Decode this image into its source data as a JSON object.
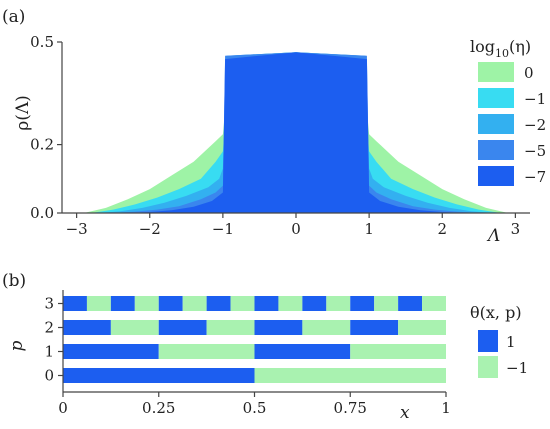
{
  "panel_a": {
    "label": "(a)",
    "ylabel": "ρ(Λ)",
    "xlabel": "Λ",
    "legend_title": "log10(η)",
    "legend_title_base": "log",
    "legend_title_sub": "10",
    "legend_title_arg": "(η)"
  },
  "panel_b": {
    "label": "(b)",
    "ylabel": "p",
    "xlabel": "x",
    "legend_title": "θ(x, p)"
  },
  "chart_data": [
    {
      "type": "area",
      "title": "",
      "xlabel": "Λ",
      "ylabel": "ρ(Λ)",
      "xlim": [
        -3.2,
        3.2
      ],
      "ylim": [
        0,
        0.5
      ],
      "xticks": [
        "−3",
        "−2",
        "−1",
        "0",
        "1",
        "2",
        "3"
      ],
      "yticks": [
        "0.0",
        "0.2",
        "0.5"
      ],
      "legend_title": "log10(η)",
      "legend_position": "right",
      "grid": false,
      "series": [
        {
          "name": "0",
          "color": "#9ef3a6",
          "x": [
            -2.9,
            -2.6,
            -2.3,
            -2.0,
            -1.7,
            -1.4,
            -1.1,
            -1.0,
            -0.9,
            0.0,
            0.9,
            1.0,
            1.1,
            1.4,
            1.7,
            2.0,
            2.3,
            2.6,
            2.9
          ],
          "values": [
            0.0,
            0.015,
            0.04,
            0.07,
            0.11,
            0.15,
            0.21,
            0.23,
            0.46,
            0.47,
            0.46,
            0.23,
            0.21,
            0.15,
            0.11,
            0.07,
            0.04,
            0.015,
            0.0
          ]
        },
        {
          "name": "−1",
          "color": "#38dcf2",
          "x": [
            -2.8,
            -2.5,
            -2.2,
            -1.9,
            -1.6,
            -1.3,
            -1.1,
            -1.0,
            -0.9,
            0.0,
            0.9,
            1.0,
            1.1,
            1.3,
            1.6,
            1.9,
            2.2,
            2.5,
            2.8
          ],
          "values": [
            0.0,
            0.01,
            0.025,
            0.045,
            0.07,
            0.1,
            0.15,
            0.18,
            0.46,
            0.47,
            0.46,
            0.18,
            0.15,
            0.1,
            0.07,
            0.045,
            0.025,
            0.01,
            0.0
          ]
        },
        {
          "name": "−2",
          "color": "#33b0f0",
          "x": [
            -2.7,
            -2.4,
            -2.1,
            -1.8,
            -1.5,
            -1.2,
            -1.05,
            -1.0,
            -0.95,
            0.0,
            0.95,
            1.0,
            1.05,
            1.2,
            1.5,
            1.8,
            2.1,
            2.4,
            2.7
          ],
          "values": [
            0.0,
            0.005,
            0.015,
            0.03,
            0.05,
            0.075,
            0.1,
            0.13,
            0.46,
            0.47,
            0.46,
            0.13,
            0.1,
            0.075,
            0.05,
            0.03,
            0.015,
            0.005,
            0.0
          ]
        },
        {
          "name": "−5",
          "color": "#3a86ee",
          "x": [
            -2.5,
            -2.2,
            -1.9,
            -1.6,
            -1.3,
            -1.1,
            -1.0,
            -0.97,
            0.0,
            0.97,
            1.0,
            1.1,
            1.3,
            1.6,
            1.9,
            2.2,
            2.5
          ],
          "values": [
            0.0,
            0.004,
            0.01,
            0.02,
            0.04,
            0.06,
            0.08,
            0.46,
            0.47,
            0.46,
            0.08,
            0.06,
            0.04,
            0.02,
            0.01,
            0.004,
            0.0
          ]
        },
        {
          "name": "−7",
          "color": "#1c5ef0",
          "x": [
            -2.3,
            -2.0,
            -1.7,
            -1.4,
            -1.15,
            -1.0,
            -0.97,
            -0.5,
            0.0,
            0.5,
            0.97,
            1.0,
            1.15,
            1.4,
            1.7,
            2.0,
            2.3
          ],
          "values": [
            0.0,
            0.003,
            0.008,
            0.018,
            0.035,
            0.06,
            0.45,
            0.46,
            0.47,
            0.46,
            0.45,
            0.06,
            0.035,
            0.018,
            0.008,
            0.003,
            0.0
          ]
        }
      ]
    },
    {
      "type": "heatmap",
      "title": "",
      "xlabel": "x",
      "ylabel": "p",
      "xlim": [
        0,
        1
      ],
      "xticks": [
        "0",
        "0.25",
        "0.5",
        "0.75",
        "1"
      ],
      "yticks": [
        "3",
        "2",
        "1",
        "0"
      ],
      "legend_title": "θ(x, p)",
      "legend_position": "right",
      "legend": [
        {
          "label": "1",
          "color": "#1c5ef0"
        },
        {
          "label": "−1",
          "color": "#a9f2b0"
        }
      ],
      "rows": [
        {
          "p": 3,
          "cells": [
            1,
            -1,
            1,
            -1,
            1,
            -1,
            1,
            -1,
            1,
            -1,
            1,
            -1,
            1,
            -1,
            1,
            -1
          ]
        },
        {
          "p": 2,
          "cells": [
            1,
            -1,
            1,
            -1,
            1,
            -1,
            1,
            -1
          ]
        },
        {
          "p": 1,
          "cells": [
            1,
            -1,
            1,
            -1
          ]
        },
        {
          "p": 0,
          "cells": [
            1,
            -1
          ]
        }
      ]
    }
  ]
}
